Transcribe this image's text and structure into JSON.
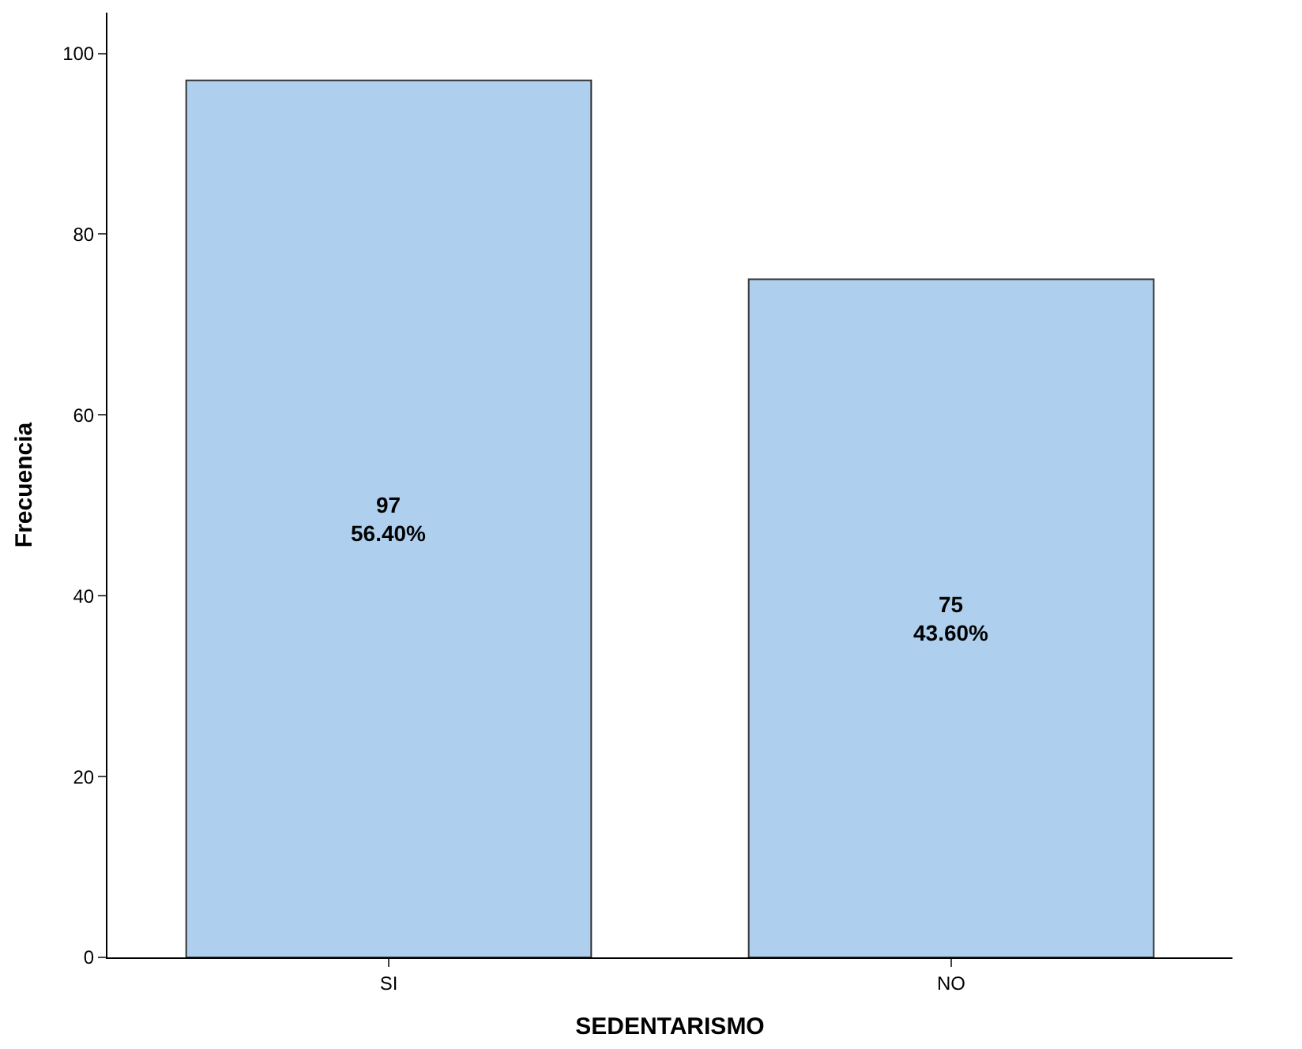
{
  "chart_data": {
    "type": "bar",
    "xlabel": "SEDENTARISMO",
    "ylabel": "Frecuencia",
    "categories": [
      "SI",
      "NO"
    ],
    "values": [
      97,
      75
    ],
    "value_labels": [
      "97\n56.40%",
      "75\n43.60%"
    ],
    "color": "#aed0ee",
    "ylim": [
      0,
      104.5
    ],
    "yticks": [
      0,
      20,
      40,
      60,
      80,
      100
    ],
    "legend": false
  }
}
